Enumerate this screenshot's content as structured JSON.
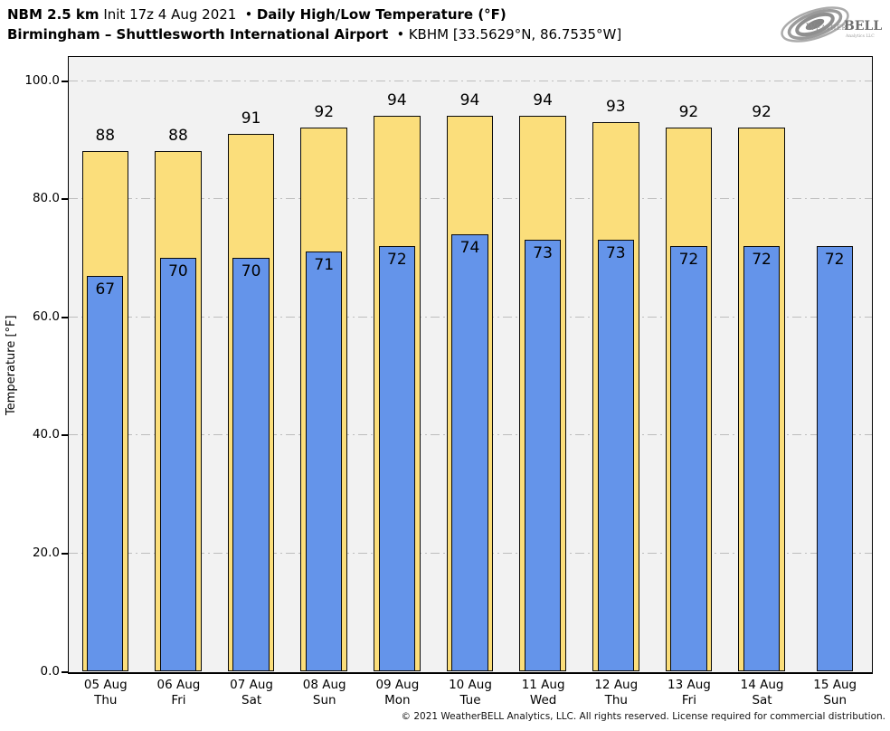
{
  "header": {
    "line1": {
      "model": "NBM 2.5 km",
      "init": "Init 17z 4 Aug 2021",
      "bullet": "•",
      "product": "Daily High/Low Temperature (°F)"
    },
    "line2": {
      "station": "Birmingham – Shuttlesworth International Airport",
      "bullet": "•",
      "station_id": "KBHM [33.5629°N, 86.7535°W]"
    }
  },
  "logo": {
    "brand_weather": "Weather",
    "brand_bell": "BELL",
    "brand_sub": "Analytics LLC"
  },
  "chart_data": {
    "type": "bar",
    "title": "Daily High/Low Temperature (°F)",
    "ylabel": "Temperature [°F]",
    "ylim": [
      0,
      104
    ],
    "grid": "horizontal dash-dot at each y tick, drawn behind bars",
    "legend_position": "none",
    "yticks": [
      {
        "value": 0,
        "label": "0.0"
      },
      {
        "value": 20,
        "label": "20.0"
      },
      {
        "value": 40,
        "label": "40.0"
      },
      {
        "value": 60,
        "label": "60.0"
      },
      {
        "value": 80,
        "label": "80.0"
      },
      {
        "value": 100,
        "label": "100.0"
      }
    ],
    "categories": [
      {
        "date": "05 Aug",
        "weekday": "Thu"
      },
      {
        "date": "06 Aug",
        "weekday": "Fri"
      },
      {
        "date": "07 Aug",
        "weekday": "Sat"
      },
      {
        "date": "08 Aug",
        "weekday": "Sun"
      },
      {
        "date": "09 Aug",
        "weekday": "Mon"
      },
      {
        "date": "10 Aug",
        "weekday": "Tue"
      },
      {
        "date": "11 Aug",
        "weekday": "Wed"
      },
      {
        "date": "12 Aug",
        "weekday": "Thu"
      },
      {
        "date": "13 Aug",
        "weekday": "Fri"
      },
      {
        "date": "14 Aug",
        "weekday": "Sat"
      },
      {
        "date": "15 Aug",
        "weekday": "Sun"
      }
    ],
    "series": [
      {
        "name": "High",
        "color": "#FBDE7B",
        "bar_width_frac": 0.64,
        "values": [
          88,
          88,
          91,
          92,
          94,
          94,
          94,
          93,
          92,
          92,
          null
        ]
      },
      {
        "name": "Low",
        "color": "#6494EA",
        "bar_width_frac": 0.5,
        "values": [
          67,
          70,
          70,
          71,
          72,
          74,
          73,
          73,
          72,
          72,
          72
        ]
      }
    ],
    "colors": {
      "plot_bg": "#F2F2F2",
      "grid": "#BDBDBD",
      "bar_edge": "#0A0A0A",
      "high_bar": "#FBDE7B",
      "low_bar": "#6494EA"
    }
  },
  "footer": {
    "copyright": "© 2021 WeatherBELL Analytics, LLC. All rights reserved. License required for commercial distribution."
  }
}
